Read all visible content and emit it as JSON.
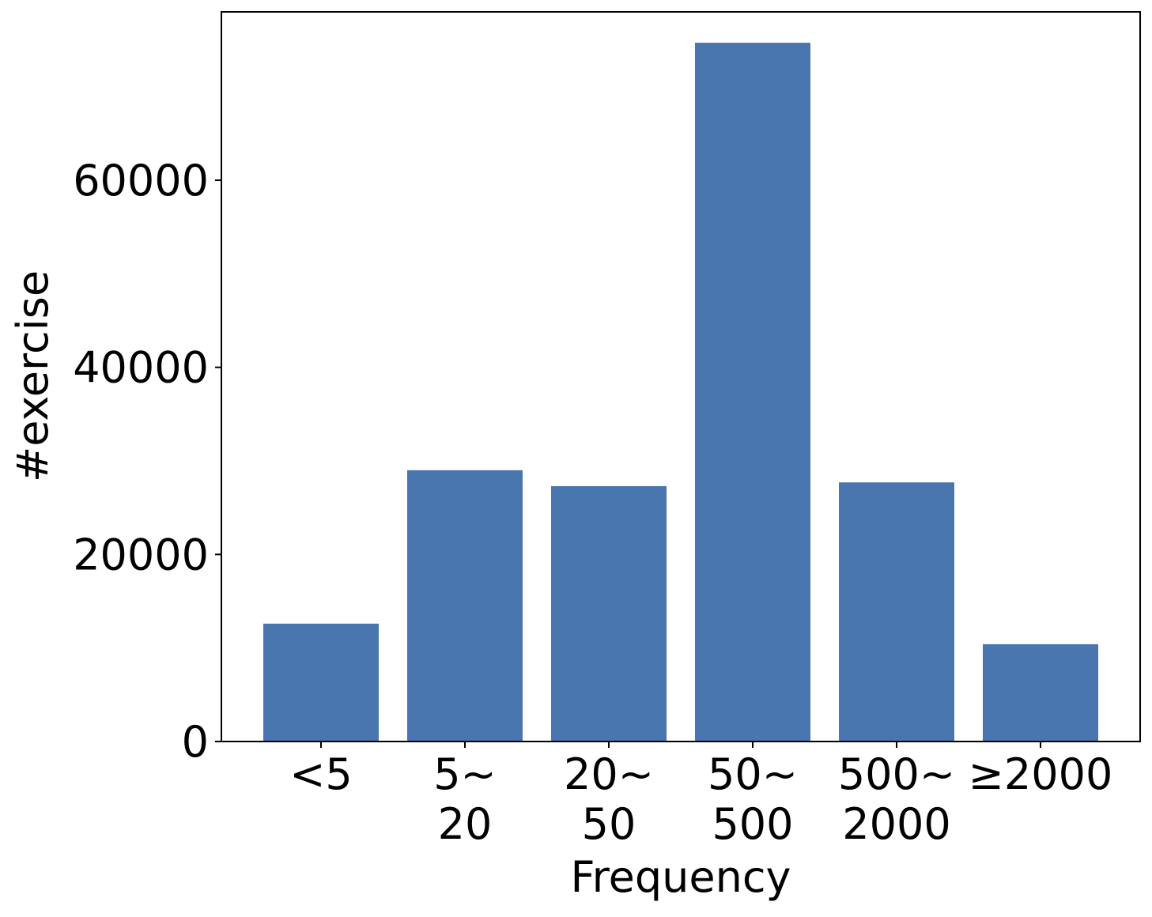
{
  "chart_data": {
    "type": "bar",
    "categories": [
      [
        "<5"
      ],
      [
        "5~",
        "20"
      ],
      [
        "20~",
        "50"
      ],
      [
        "50~",
        "500"
      ],
      [
        "500~",
        "2000"
      ],
      [
        "≥2000"
      ]
    ],
    "values": [
      12600,
      29000,
      27300,
      74700,
      27700,
      10400
    ],
    "xlabel": "Frequency",
    "ylabel": "#exercise",
    "ylim": [
      0,
      78000
    ],
    "yticks": [
      0,
      20000,
      40000,
      60000
    ],
    "ytick_labels": [
      "0",
      "20000",
      "40000",
      "60000"
    ],
    "bar_color": "#4a76b0",
    "grid": false,
    "legend": "none"
  }
}
